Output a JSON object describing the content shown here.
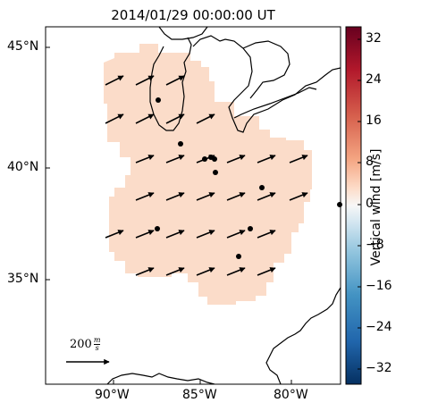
{
  "title": "2014/01/29 00:00:00 UT",
  "map": {
    "lat_labels": [
      "45°N",
      "40°N",
      "35°N"
    ],
    "lon_labels": [
      "90°W",
      "85°W",
      "80°W"
    ]
  },
  "colorbar": {
    "label": "Vertical wind [m/s]",
    "tick_labels": [
      "32",
      "24",
      "16",
      "8",
      "0",
      "−8",
      "−16",
      "−24",
      "−32"
    ],
    "min": -35,
    "max": 35,
    "colormap": "RdBu_r",
    "top_color": "#67001f",
    "bottom_color": "#053061"
  },
  "field": {
    "fill_color": "#fbdcc9",
    "value_range": [
      2,
      6
    ]
  },
  "reference_arrow": {
    "value": "200",
    "unit_num": "m",
    "unit_den": "s"
  },
  "wind_arrows": {
    "direction": "east-northeast",
    "rows": 5,
    "cols": 6
  },
  "stations": {
    "count": 13
  }
}
